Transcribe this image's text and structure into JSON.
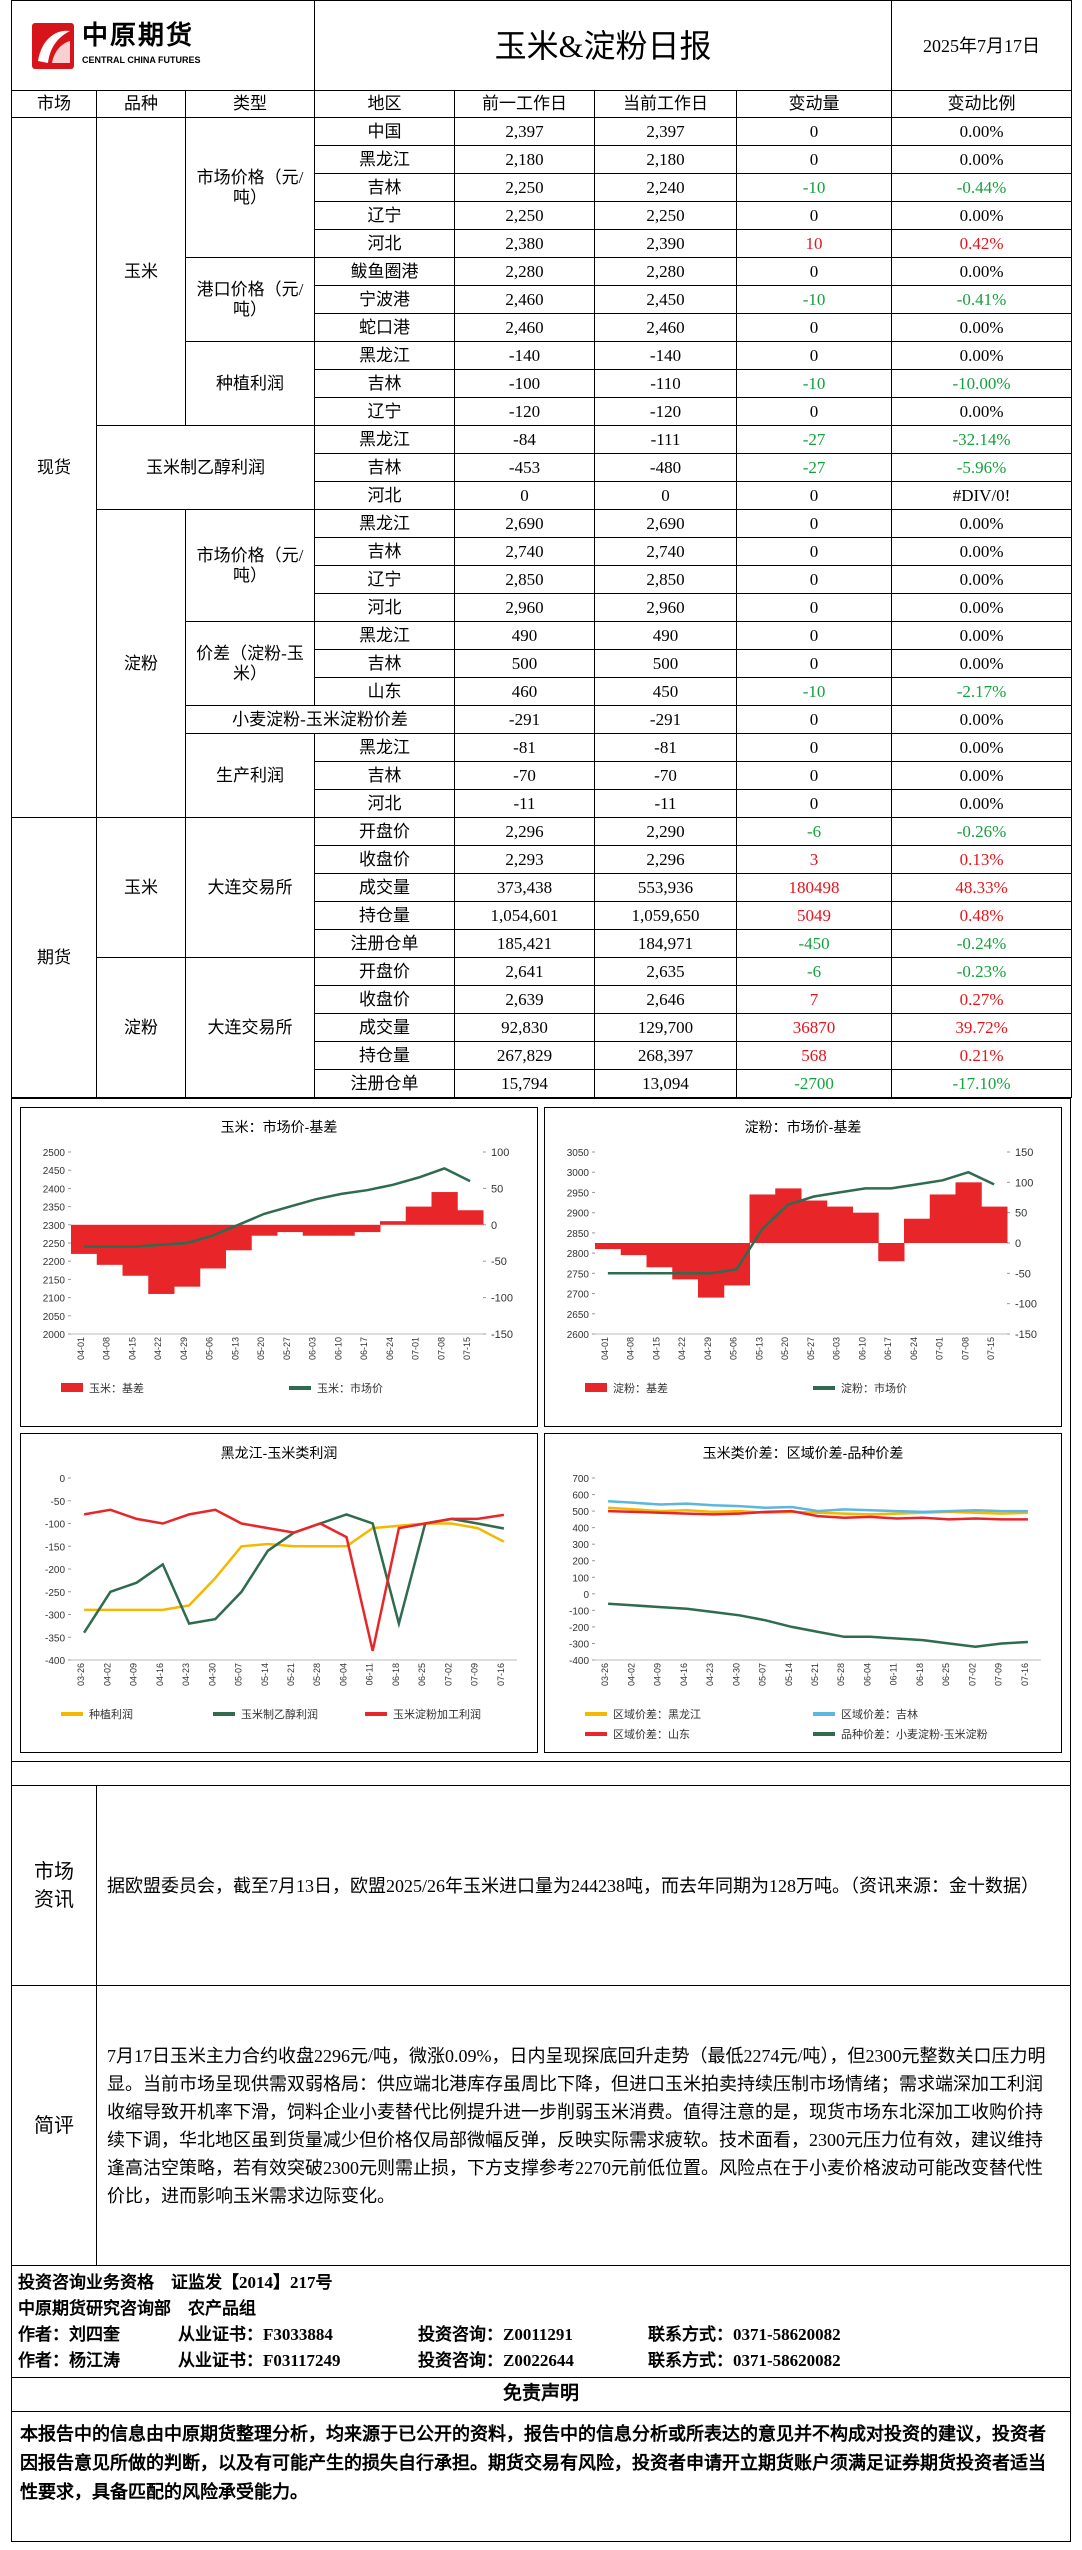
{
  "header": {
    "logo_cn": "中原期货",
    "logo_en": "CENTRAL CHINA FUTURES",
    "title": "玉米&淀粉日报",
    "date": "2025年7月17日"
  },
  "table": {
    "columns": [
      "市场",
      "品种",
      "类型",
      "地区",
      "前一工作日",
      "当前工作日",
      "变动量",
      "变动比例"
    ],
    "markets": [
      "现货",
      "期货"
    ],
    "varieties": [
      "玉米",
      "玉米制乙醇利润",
      "淀粉",
      "玉米",
      "淀粉"
    ],
    "types": [
      "市场价格（元/吨）",
      "港口价格（元/吨）",
      "种植利润",
      "市场价格（元/吨）",
      "价差（淀粉-玉米）",
      "小麦淀粉-玉米淀粉价差",
      "生产利润",
      "大连交易所",
      "大连交易所"
    ],
    "rows": [
      [
        "中国",
        "2,397",
        "2,397",
        "0",
        "0.00%"
      ],
      [
        "黑龙江",
        "2,180",
        "2,180",
        "0",
        "0.00%"
      ],
      [
        "吉林",
        "2,250",
        "2,240",
        "-10",
        "-0.44%"
      ],
      [
        "辽宁",
        "2,250",
        "2,250",
        "0",
        "0.00%"
      ],
      [
        "河北",
        "2,380",
        "2,390",
        "10",
        "0.42%"
      ],
      [
        "鲅鱼圈港",
        "2,280",
        "2,280",
        "0",
        "0.00%"
      ],
      [
        "宁波港",
        "2,460",
        "2,450",
        "-10",
        "-0.41%"
      ],
      [
        "蛇口港",
        "2,460",
        "2,460",
        "0",
        "0.00%"
      ],
      [
        "黑龙江",
        "-140",
        "-140",
        "0",
        "0.00%"
      ],
      [
        "吉林",
        "-100",
        "-110",
        "-10",
        "-10.00%"
      ],
      [
        "辽宁",
        "-120",
        "-120",
        "0",
        "0.00%"
      ],
      [
        "黑龙江",
        "-84",
        "-111",
        "-27",
        "-32.14%"
      ],
      [
        "吉林",
        "-453",
        "-480",
        "-27",
        "-5.96%"
      ],
      [
        "河北",
        "0",
        "0",
        "0",
        "#DIV/0!"
      ],
      [
        "黑龙江",
        "2,690",
        "2,690",
        "0",
        "0.00%"
      ],
      [
        "吉林",
        "2,740",
        "2,740",
        "0",
        "0.00%"
      ],
      [
        "辽宁",
        "2,850",
        "2,850",
        "0",
        "0.00%"
      ],
      [
        "河北",
        "2,960",
        "2,960",
        "0",
        "0.00%"
      ],
      [
        "黑龙江",
        "490",
        "490",
        "0",
        "0.00%"
      ],
      [
        "吉林",
        "500",
        "500",
        "0",
        "0.00%"
      ],
      [
        "山东",
        "460",
        "450",
        "-10",
        "-2.17%"
      ],
      [
        "-291",
        "-291",
        "0",
        "0.00%"
      ],
      [
        "黑龙江",
        "-81",
        "-81",
        "0",
        "0.00%"
      ],
      [
        "吉林",
        "-70",
        "-70",
        "0",
        "0.00%"
      ],
      [
        "河北",
        "-11",
        "-11",
        "0",
        "0.00%"
      ],
      [
        "开盘价",
        "2,296",
        "2,290",
        "-6",
        "-0.26%"
      ],
      [
        "收盘价",
        "2,293",
        "2,296",
        "3",
        "0.13%"
      ],
      [
        "成交量",
        "373,438",
        "553,936",
        "180498",
        "48.33%"
      ],
      [
        "持仓量",
        "1,054,601",
        "1,059,650",
        "5049",
        "0.48%"
      ],
      [
        "注册仓单",
        "185,421",
        "184,971",
        "-450",
        "-0.24%"
      ],
      [
        "开盘价",
        "2,641",
        "2,635",
        "-6",
        "-0.23%"
      ],
      [
        "收盘价",
        "2,639",
        "2,646",
        "7",
        "0.27%"
      ],
      [
        "成交量",
        "92,830",
        "129,700",
        "36870",
        "39.72%"
      ],
      [
        "持仓量",
        "267,829",
        "268,397",
        "568",
        "0.21%"
      ],
      [
        "注册仓单",
        "15,794",
        "13,094",
        "-2700",
        "-17.10%"
      ]
    ]
  },
  "chart_data": [
    {
      "type": "combo",
      "title": "玉米：市场价-基差",
      "categories": [
        "04-01",
        "04-08",
        "04-15",
        "04-22",
        "04-29",
        "05-06",
        "05-13",
        "05-20",
        "05-27",
        "06-03",
        "06-10",
        "06-17",
        "06-24",
        "07-01",
        "07-08",
        "07-15"
      ],
      "ylim": [
        2000,
        2500
      ],
      "yticks": [
        2500,
        2450,
        2400,
        2350,
        2300,
        2250,
        2200,
        2150,
        2100,
        2050,
        2000
      ],
      "y2lim": [
        -150,
        100
      ],
      "y2ticks": [
        100,
        50,
        0,
        -50,
        -100,
        -150
      ],
      "series": [
        {
          "name": "玉米：基差",
          "type": "bar",
          "axis": "y2",
          "color": "#e8262a",
          "values": [
            -40,
            -55,
            -70,
            -95,
            -85,
            -60,
            -35,
            -15,
            -10,
            -15,
            -15,
            -10,
            5,
            25,
            45,
            20
          ]
        },
        {
          "name": "玉米：市场价",
          "type": "line",
          "color": "#2e6b4f",
          "values": [
            2240,
            2240,
            2240,
            2245,
            2250,
            2270,
            2300,
            2330,
            2350,
            2370,
            2385,
            2395,
            2410,
            2430,
            2455,
            2420
          ]
        }
      ]
    },
    {
      "type": "combo",
      "title": "淀粉：市场价-基差",
      "categories": [
        "04-01",
        "04-08",
        "04-15",
        "04-22",
        "04-29",
        "05-06",
        "05-13",
        "05-20",
        "05-27",
        "06-03",
        "06-10",
        "06-17",
        "06-24",
        "07-01",
        "07-08",
        "07-15"
      ],
      "ylim": [
        2600,
        3050
      ],
      "yticks": [
        3050,
        3000,
        2950,
        2900,
        2850,
        2800,
        2750,
        2700,
        2650,
        2600
      ],
      "y2lim": [
        -150,
        150
      ],
      "y2ticks": [
        150,
        100,
        50,
        0,
        -50,
        -100,
        -150
      ],
      "series": [
        {
          "name": "淀粉：基差",
          "type": "bar",
          "axis": "y2",
          "color": "#e8262a",
          "values": [
            -10,
            -20,
            -40,
            -60,
            -90,
            -70,
            80,
            90,
            70,
            60,
            50,
            -30,
            40,
            80,
            100,
            60
          ]
        },
        {
          "name": "淀粉：市场价",
          "type": "line",
          "color": "#2e6b4f",
          "values": [
            2750,
            2750,
            2750,
            2750,
            2750,
            2760,
            2860,
            2920,
            2940,
            2950,
            2960,
            2960,
            2970,
            2980,
            3000,
            2970
          ]
        }
      ]
    },
    {
      "type": "line",
      "title": "黑龙江-玉米类利润",
      "categories": [
        "03-26",
        "04-02",
        "04-09",
        "04-16",
        "04-23",
        "04-30",
        "05-07",
        "05-14",
        "05-21",
        "05-28",
        "06-04",
        "06-11",
        "06-18",
        "06-25",
        "07-02",
        "07-09",
        "07-16"
      ],
      "ylim": [
        -400,
        0
      ],
      "yticks": [
        0,
        -50,
        -100,
        -150,
        -200,
        -250,
        -300,
        -350,
        -400
      ],
      "series": [
        {
          "name": "种植利润",
          "type": "line",
          "color": "#f5b800",
          "values": [
            -290,
            -290,
            -290,
            -290,
            -280,
            -220,
            -150,
            -145,
            -150,
            -150,
            -150,
            -110,
            -105,
            -100,
            -100,
            -110,
            -140
          ]
        },
        {
          "name": "玉米制乙醇利润",
          "type": "line",
          "color": "#2e6b4f",
          "values": [
            -340,
            -250,
            -230,
            -190,
            -320,
            -310,
            -250,
            -160,
            -120,
            -100,
            -80,
            -100,
            -320,
            -100,
            -90,
            -100,
            -111
          ]
        },
        {
          "name": "玉米淀粉加工利润",
          "type": "line",
          "color": "#e8262a",
          "values": [
            -80,
            -70,
            -90,
            -100,
            -80,
            -70,
            -100,
            -110,
            -120,
            -100,
            -130,
            -380,
            -110,
            -100,
            -90,
            -90,
            -81
          ]
        }
      ]
    },
    {
      "type": "line",
      "title": "玉米类价差：区域价差-品种价差",
      "categories": [
        "03-26",
        "04-02",
        "04-09",
        "04-16",
        "04-23",
        "04-30",
        "05-07",
        "05-14",
        "05-21",
        "05-28",
        "06-04",
        "06-11",
        "06-18",
        "06-25",
        "07-02",
        "07-09",
        "07-16"
      ],
      "ylim": [
        -400,
        700
      ],
      "yticks": [
        700,
        600,
        500,
        400,
        300,
        200,
        100,
        0,
        -100,
        -200,
        -300,
        -400
      ],
      "series": [
        {
          "name": "区域价差：黑龙江",
          "type": "line",
          "color": "#f5b800",
          "values": [
            520,
            510,
            500,
            505,
            495,
            500,
            490,
            495,
            490,
            485,
            480,
            485,
            490,
            495,
            490,
            485,
            490
          ]
        },
        {
          "name": "区域价差：吉林",
          "type": "line",
          "color": "#5bb6e0",
          "values": [
            560,
            550,
            540,
            545,
            535,
            530,
            520,
            525,
            500,
            510,
            505,
            500,
            495,
            500,
            505,
            500,
            500
          ]
        },
        {
          "name": "区域价差：山东",
          "type": "line",
          "color": "#e8262a",
          "values": [
            500,
            495,
            490,
            485,
            480,
            485,
            495,
            500,
            470,
            460,
            465,
            455,
            460,
            450,
            455,
            450,
            450
          ]
        },
        {
          "name": "品种价差：小麦淀粉-玉米淀粉",
          "type": "line",
          "color": "#2e6b4f",
          "values": [
            -60,
            -70,
            -80,
            -90,
            -110,
            -130,
            -160,
            -200,
            -230,
            -260,
            -260,
            -270,
            -280,
            -300,
            -320,
            -300,
            -291
          ]
        }
      ]
    }
  ],
  "news": {
    "label": "市场资讯",
    "text": "据欧盟委员会，截至7月13日，欧盟2025/26年玉米进口量为244238吨，而去年同期为128万吨。（资讯来源：金十数据）"
  },
  "review": {
    "label": "简评",
    "text": "7月17日玉米主力合约收盘2296元/吨，微涨0.09%，日内呈现探底回升走势（最低2274元/吨），但2300元整数关口压力明显。当前市场呈现供需双弱格局：供应端北港库存虽周比下降，但进口玉米拍卖持续压制市场情绪；需求端深加工利润收缩导致开机率下滑，饲料企业小麦替代比例提升进一步削弱玉米消费。值得注意的是，现货市场东北深加工收购价持续下调，华北地区虽到货量减少但价格仅局部微幅反弹，反映实际需求疲软。技术面看，2300元压力位有效，建议维持逢高沽空策略，若有效突破2300元则需止损，下方支撑参考2270元前低位置。风险点在于小麦价格波动可能改变替代性价比，进而影响玉米需求边际变化。"
  },
  "footer": {
    "qualification": "投资咨询业务资格　证监发【2014】217号",
    "department": "中原期货研究咨询部　农产品组",
    "authors": [
      [
        "作者：刘四奎",
        "从业证书：F3033884",
        "投资咨询：Z0011291",
        "联系方式：0371-58620082"
      ],
      [
        "作者：杨江涛",
        "从业证书：F03117249",
        "投资咨询：Z0022644",
        "联系方式：0371-58620082"
      ]
    ]
  },
  "disclaimer": {
    "title": "免责声明",
    "text": "本报告中的信息由中原期货整理分析，均来源于已公开的资料，报告中的信息分析或所表达的意见并不构成对投资的建议，投资者因报告意见所做的判断，以及有可能产生的损失自行承担。期货交易有风险，投资者申请开立期货账户须满足证券期货投资者适当性要求，具备匹配的风险承受能力。"
  }
}
